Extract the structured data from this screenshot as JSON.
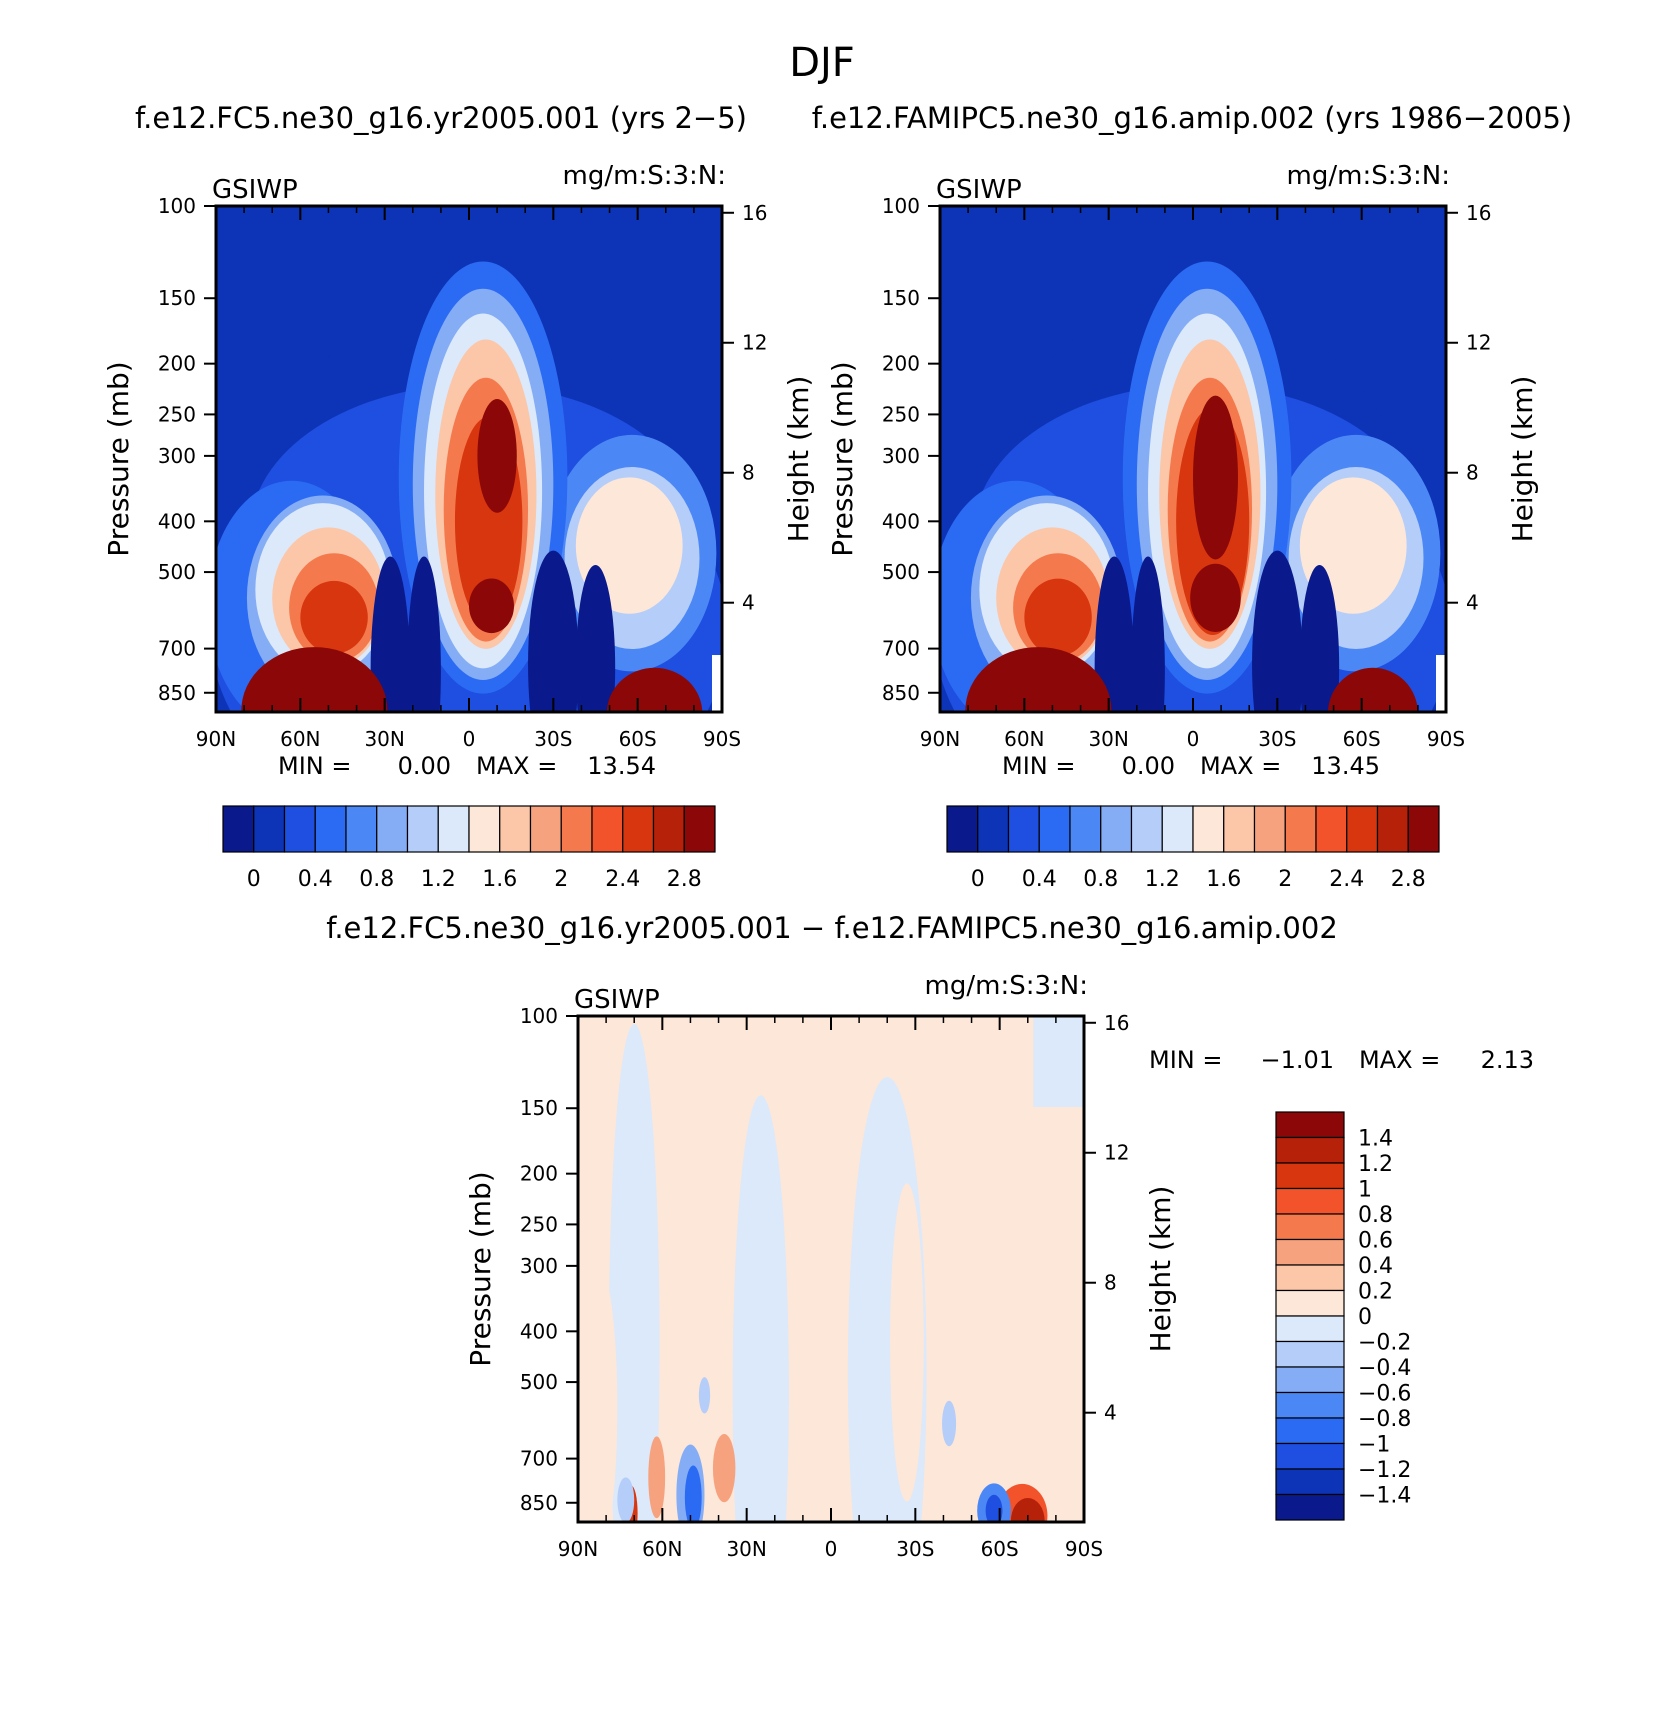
{
  "figure": {
    "title": "DJF"
  },
  "panels": [
    {
      "id": "test",
      "title": "f.e12.FC5.ne30_g16.yr2005.001 (yrs 2−5)",
      "left_label": "GSIWP",
      "right_label": "mg/m:S:3:N:",
      "ylabel": "Pressure (mb)",
      "ylabel_right": "Height (km)",
      "x_ticks": [
        "90N",
        "60N",
        "30N",
        "0",
        "30S",
        "60S",
        "90S"
      ],
      "y_ticks": [
        "100",
        "150",
        "200",
        "250",
        "300",
        "400",
        "500",
        "700",
        "850"
      ],
      "y_right_ticks": [
        "16",
        "12",
        "8",
        "4"
      ],
      "min_label": "MIN =",
      "min_value": "0.00",
      "max_label": "MAX =",
      "max_value": "13.54",
      "colors": [
        "#0a1a8c",
        "#0d34b6",
        "#1e4fe0",
        "#2b6bf4",
        "#4c88f5",
        "#85adf6",
        "#b5cdf9",
        "#dbe9fb",
        "#fde7d8",
        "#fcc6a8",
        "#f7a27f",
        "#f47a4e",
        "#f2532b",
        "#d8360f",
        "#b52109",
        "#8c0707"
      ],
      "colorbar_labels": [
        "0",
        "0.4",
        "0.8",
        "1.2",
        "1.6",
        "2",
        "2.4",
        "2.8"
      ]
    },
    {
      "id": "control",
      "title": "f.e12.FAMIPC5.ne30_g16.amip.002 (yrs 1986−2005)",
      "left_label": "GSIWP",
      "right_label": "mg/m:S:3:N:",
      "ylabel": "Pressure (mb)",
      "ylabel_right": "Height (km)",
      "x_ticks": [
        "90N",
        "60N",
        "30N",
        "0",
        "30S",
        "60S",
        "90S"
      ],
      "y_ticks": [
        "100",
        "150",
        "200",
        "250",
        "300",
        "400",
        "500",
        "700",
        "850"
      ],
      "y_right_ticks": [
        "16",
        "12",
        "8",
        "4"
      ],
      "min_label": "MIN =",
      "min_value": "0.00",
      "max_label": "MAX =",
      "max_value": "13.45",
      "colors": [
        "#0a1a8c",
        "#0d34b6",
        "#1e4fe0",
        "#2b6bf4",
        "#4c88f5",
        "#85adf6",
        "#b5cdf9",
        "#dbe9fb",
        "#fde7d8",
        "#fcc6a8",
        "#f7a27f",
        "#f47a4e",
        "#f2532b",
        "#d8360f",
        "#b52109",
        "#8c0707"
      ],
      "colorbar_labels": [
        "0",
        "0.4",
        "0.8",
        "1.2",
        "1.6",
        "2",
        "2.4",
        "2.8"
      ]
    },
    {
      "id": "difference",
      "title": "f.e12.FC5.ne30_g16.yr2005.001 − f.e12.FAMIPC5.ne30_g16.amip.002",
      "left_label": "GSIWP",
      "right_label": "mg/m:S:3:N:",
      "ylabel": "Pressure (mb)",
      "ylabel_right": "Height (km)",
      "x_ticks": [
        "90N",
        "60N",
        "30N",
        "0",
        "30S",
        "60S",
        "90S"
      ],
      "y_ticks": [
        "100",
        "150",
        "200",
        "250",
        "300",
        "400",
        "500",
        "700",
        "850"
      ],
      "y_right_ticks": [
        "16",
        "12",
        "8",
        "4"
      ],
      "min_label": "MIN =",
      "min_value": "−1.01",
      "max_label": "MAX =",
      "max_value": "2.13",
      "colors": [
        "#8c0707",
        "#b52109",
        "#d8360f",
        "#f2532b",
        "#f47a4e",
        "#f7a27f",
        "#fcc6a8",
        "#fde7d8",
        "#dbe9fb",
        "#b5cdf9",
        "#85adf6",
        "#4c88f5",
        "#2b6bf4",
        "#1e4fe0",
        "#0d34b6",
        "#0a1a8c"
      ],
      "colorbar_labels": [
        "1.4",
        "1.2",
        "1",
        "0.8",
        "0.6",
        "0.4",
        "0.2",
        "0",
        "−0.2",
        "−0.4",
        "−0.6",
        "−0.8",
        "−1",
        "−1.2",
        "−1.4"
      ]
    }
  ],
  "chart_data": [
    {
      "type": "heatmap",
      "title": "f.e12.FC5.ne30_g16.yr2005.001 (yrs 2−5)",
      "variable": "GSIWP",
      "units": "mg/m:S:3:N:",
      "xlabel": "",
      "ylabel": "Pressure (mb)",
      "ylabel_right": "Height (km)",
      "x_range": [
        90,
        -90
      ],
      "y_range_mb": [
        100,
        925
      ],
      "levels": [
        0,
        0.2,
        0.4,
        0.6,
        0.8,
        1.0,
        1.2,
        1.4,
        1.6,
        1.8,
        2.0,
        2.2,
        2.4,
        2.6,
        2.8
      ],
      "min": 0.0,
      "max": 13.54
    },
    {
      "type": "heatmap",
      "title": "f.e12.FAMIPC5.ne30_g16.amip.002 (yrs 1986−2005)",
      "variable": "GSIWP",
      "units": "mg/m:S:3:N:",
      "xlabel": "",
      "ylabel": "Pressure (mb)",
      "ylabel_right": "Height (km)",
      "x_range": [
        90,
        -90
      ],
      "y_range_mb": [
        100,
        925
      ],
      "levels": [
        0,
        0.2,
        0.4,
        0.6,
        0.8,
        1.0,
        1.2,
        1.4,
        1.6,
        1.8,
        2.0,
        2.2,
        2.4,
        2.6,
        2.8
      ],
      "min": 0.0,
      "max": 13.45
    },
    {
      "type": "heatmap",
      "title": "f.e12.FC5.ne30_g16.yr2005.001 − f.e12.FAMIPC5.ne30_g16.amip.002",
      "variable": "GSIWP",
      "units": "mg/m:S:3:N:",
      "xlabel": "",
      "ylabel": "Pressure (mb)",
      "ylabel_right": "Height (km)",
      "x_range": [
        90,
        -90
      ],
      "y_range_mb": [
        100,
        925
      ],
      "levels": [
        -1.4,
        -1.2,
        -1.0,
        -0.8,
        -0.6,
        -0.4,
        -0.2,
        0,
        0.2,
        0.4,
        0.6,
        0.8,
        1.0,
        1.2,
        1.4
      ],
      "min": -1.01,
      "max": 2.13
    }
  ]
}
